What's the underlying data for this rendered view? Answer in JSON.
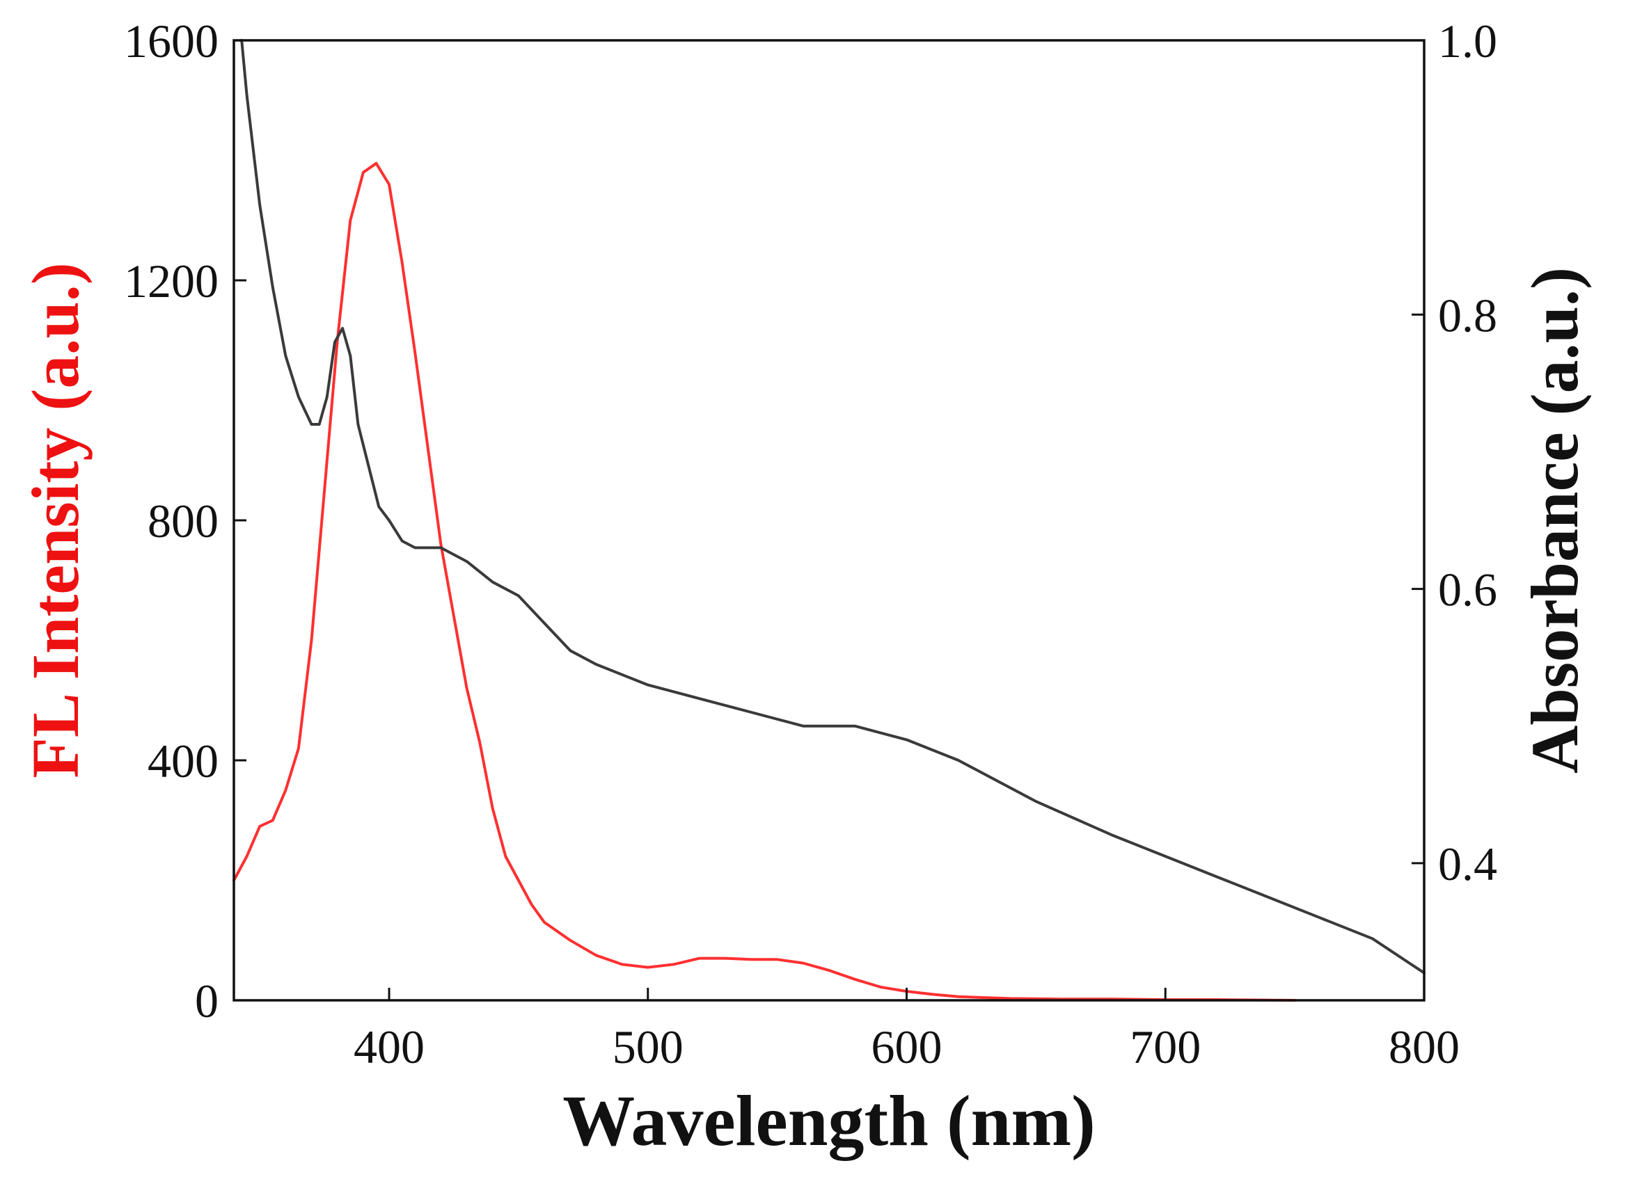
{
  "chart_data": {
    "type": "line",
    "title": "",
    "xlabel": "Wavelength (nm)",
    "ylabel_left": "FL Intensity (a.u.)",
    "ylabel_right": "Absorbance (a.u.)",
    "xlim": [
      340,
      800
    ],
    "ylim_left": [
      0,
      1600
    ],
    "ylim_right": [
      0.3,
      1.0
    ],
    "x_ticks": [
      400,
      500,
      600,
      700,
      800
    ],
    "y_left_ticks": [
      0,
      400,
      800,
      1200,
      1600
    ],
    "y_right_ticks": [
      0.4,
      0.6,
      0.8,
      1.0
    ],
    "x_tick_labels": [
      "400",
      "500",
      "600",
      "700",
      "800"
    ],
    "y_left_tick_labels": [
      "0",
      "400",
      "800",
      "1200",
      "1600"
    ],
    "y_right_tick_labels": [
      "0.4",
      "0.6",
      "0.8",
      "1.0"
    ],
    "grid": false,
    "series": [
      {
        "name": "FL Intensity",
        "axis": "left",
        "color": "#ff3030",
        "x": [
          340,
          345,
          350,
          355,
          360,
          365,
          370,
          375,
          380,
          385,
          390,
          395,
          400,
          405,
          410,
          415,
          420,
          425,
          430,
          435,
          440,
          445,
          450,
          455,
          460,
          470,
          480,
          490,
          500,
          510,
          520,
          530,
          540,
          550,
          560,
          570,
          580,
          590,
          600,
          610,
          620,
          640,
          660,
          680,
          700,
          720,
          750
        ],
        "values": [
          200,
          240,
          290,
          300,
          350,
          420,
          600,
          850,
          1100,
          1300,
          1380,
          1395,
          1360,
          1230,
          1080,
          920,
          760,
          640,
          520,
          430,
          320,
          240,
          200,
          160,
          130,
          100,
          75,
          60,
          55,
          60,
          70,
          70,
          68,
          68,
          62,
          50,
          35,
          22,
          15,
          10,
          6,
          3,
          2,
          2,
          1,
          1,
          0
        ]
      },
      {
        "name": "Absorbance",
        "axis": "right",
        "color": "#3a3a3a",
        "x": [
          343,
          345,
          350,
          355,
          360,
          365,
          370,
          373,
          376,
          379,
          382,
          385,
          388,
          392,
          396,
          400,
          405,
          410,
          415,
          420,
          430,
          440,
          450,
          460,
          470,
          480,
          500,
          520,
          540,
          560,
          570,
          580,
          590,
          600,
          620,
          650,
          680,
          700,
          720,
          740,
          760,
          780,
          800
        ],
        "values": [
          1.0,
          0.96,
          0.88,
          0.82,
          0.77,
          0.74,
          0.72,
          0.72,
          0.74,
          0.78,
          0.79,
          0.77,
          0.72,
          0.69,
          0.66,
          0.65,
          0.635,
          0.63,
          0.63,
          0.63,
          0.62,
          0.605,
          0.595,
          0.575,
          0.555,
          0.545,
          0.53,
          0.52,
          0.51,
          0.5,
          0.5,
          0.5,
          0.495,
          0.49,
          0.475,
          0.445,
          0.42,
          0.405,
          0.39,
          0.375,
          0.36,
          0.345,
          0.32
        ]
      }
    ]
  }
}
